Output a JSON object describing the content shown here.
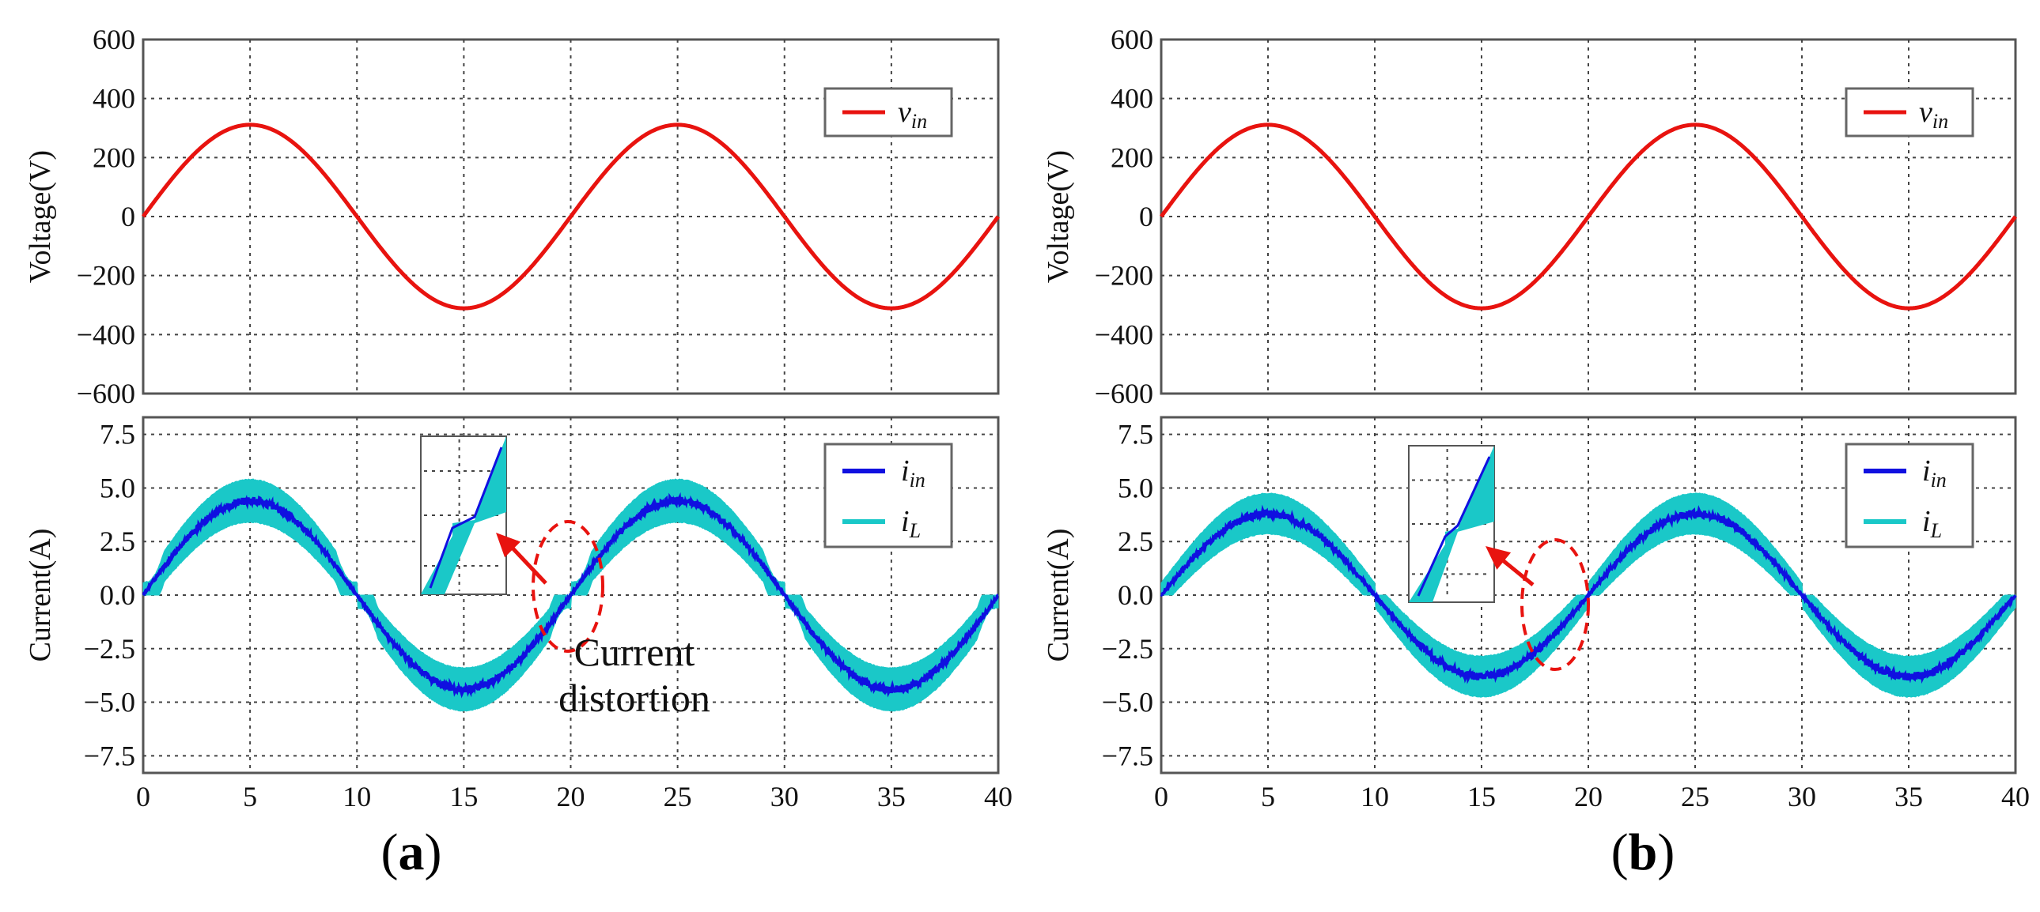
{
  "chart_data": [
    {
      "type": "line",
      "panel_label": "(a)",
      "panel_letter": "a",
      "top": {
        "ylabel": "Voltage(V)",
        "ylim": [
          -600,
          600
        ],
        "yticks": [
          600,
          400,
          200,
          0,
          -200,
          -400,
          -600
        ],
        "ytick_labels": [
          "600",
          "400",
          "200",
          "0",
          "−200",
          "−400",
          "−600"
        ],
        "xlim": [
          0,
          40
        ],
        "series": [
          {
            "name": "v_in",
            "label_main": "v",
            "label_sub": "in",
            "color": "#e8130f",
            "amplitude": 311,
            "period": 20
          }
        ]
      },
      "bottom": {
        "ylabel": "Current(A)",
        "ylim": [
          -8.3,
          8.3
        ],
        "yticks": [
          7.5,
          5.0,
          2.5,
          0.0,
          -2.5,
          -5.0,
          -7.5
        ],
        "ytick_labels": [
          "7.5",
          "5.0",
          "2.5",
          "0.0",
          "−2.5",
          "−5.0",
          "−7.5"
        ],
        "xlim": [
          0,
          40
        ],
        "xticks": [
          0,
          5,
          10,
          15,
          20,
          25,
          30,
          35,
          40
        ],
        "xtick_labels": [
          "0",
          "5",
          "10",
          "15",
          "20",
          "25",
          "30",
          "35",
          "40"
        ],
        "series": [
          {
            "name": "i_in",
            "label_main": "i",
            "label_sub": "in",
            "color": "#1010e0",
            "amplitude": 4.4
          },
          {
            "name": "i_L",
            "label_main": "i",
            "label_sub": "L",
            "color": "#1ac8c8",
            "amplitude": 4.4,
            "ripple": 1.0,
            "deadband": 0.55
          }
        ],
        "annotation": {
          "line1": "Current",
          "line2": "distortion"
        }
      }
    },
    {
      "type": "line",
      "panel_label": "(b)",
      "panel_letter": "b",
      "top": {
        "ylabel": "Voltage(V)",
        "ylim": [
          -600,
          600
        ],
        "yticks": [
          600,
          400,
          200,
          0,
          -200,
          -400,
          -600
        ],
        "ytick_labels": [
          "600",
          "400",
          "200",
          "0",
          "−200",
          "−400",
          "−600"
        ],
        "xlim": [
          0,
          40
        ],
        "series": [
          {
            "name": "v_in",
            "label_main": "v",
            "label_sub": "in",
            "color": "#e8130f",
            "amplitude": 311,
            "period": 20
          }
        ]
      },
      "bottom": {
        "ylabel": "Current(A)",
        "ylim": [
          -8.3,
          8.3
        ],
        "yticks": [
          7.5,
          5.0,
          2.5,
          0.0,
          -2.5,
          -5.0,
          -7.5
        ],
        "ytick_labels": [
          "7.5",
          "5.0",
          "2.5",
          "0.0",
          "−2.5",
          "−5.0",
          "−7.5"
        ],
        "xlim": [
          0,
          40
        ],
        "xticks": [
          0,
          5,
          10,
          15,
          20,
          25,
          30,
          35,
          40
        ],
        "xtick_labels": [
          "0",
          "5",
          "10",
          "15",
          "20",
          "25",
          "30",
          "35",
          "40"
        ],
        "series": [
          {
            "name": "i_in",
            "label_main": "i",
            "label_sub": "in",
            "color": "#1010e0",
            "amplitude": 3.8
          },
          {
            "name": "i_L",
            "label_main": "i",
            "label_sub": "L",
            "color": "#1ac8c8",
            "amplitude": 3.8,
            "ripple": 0.95,
            "deadband": 0.0
          }
        ]
      }
    }
  ],
  "colors": {
    "zoom_arrow": "#e8130f",
    "ellipse": "#e8130f"
  }
}
